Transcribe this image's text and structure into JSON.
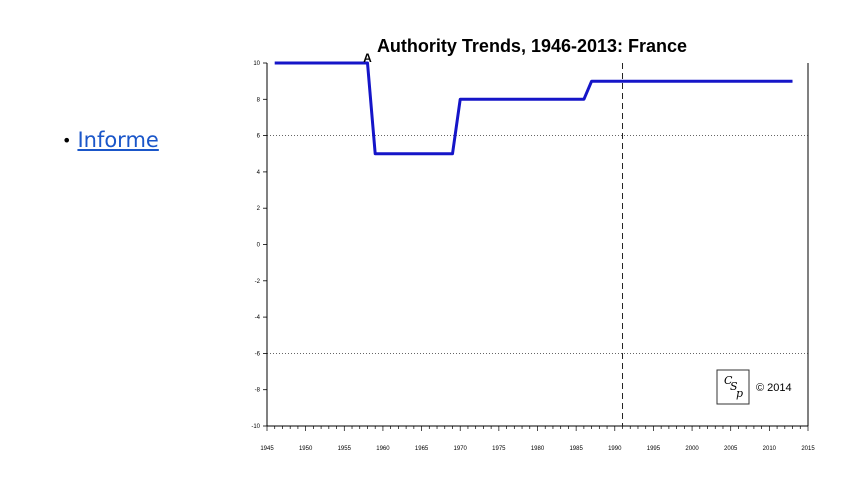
{
  "bullet": {
    "marker": "•",
    "link_label": "Informe"
  },
  "chart_data": {
    "type": "line",
    "title": "Authority Trends, 1946-2013: France",
    "xlabel": "",
    "ylabel": "",
    "xlim": [
      1945,
      2015
    ],
    "ylim": [
      -10,
      10
    ],
    "x_ticks": [
      1945,
      1950,
      1955,
      1960,
      1965,
      1970,
      1975,
      1980,
      1985,
      1990,
      1995,
      2000,
      2005,
      2010,
      2015
    ],
    "y_ticks": [
      -10,
      -8,
      -6,
      -4,
      -2,
      0,
      2,
      4,
      6,
      8,
      10
    ],
    "grid": false,
    "reference_lines": [
      {
        "axis": "y",
        "value": 6,
        "style": "dotted"
      },
      {
        "axis": "y",
        "value": -6,
        "style": "dotted"
      },
      {
        "axis": "x",
        "value": 1991,
        "style": "dashed"
      }
    ],
    "series": [
      {
        "color": "#1515c8",
        "points": [
          [
            1946,
            10
          ],
          [
            1958,
            10
          ],
          [
            1959,
            5
          ],
          [
            1969,
            5
          ],
          [
            1970,
            8
          ],
          [
            1986,
            8
          ],
          [
            1987,
            9
          ],
          [
            2013,
            9
          ]
        ]
      }
    ],
    "annotations": [
      {
        "label": "A",
        "x": 1958,
        "y": 10
      }
    ],
    "logo": {
      "glyphs": "CSP",
      "copyright": "© 2014"
    }
  }
}
